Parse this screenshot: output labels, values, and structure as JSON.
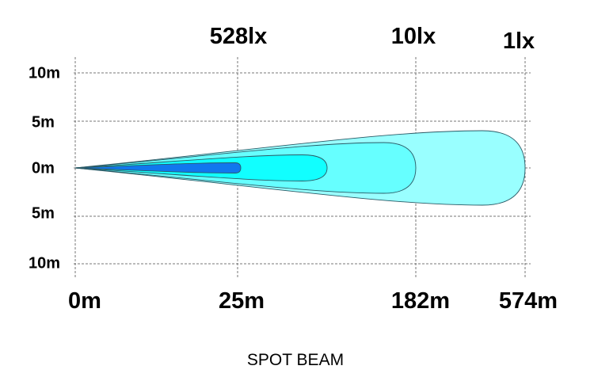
{
  "lux_labels": [
    "528lx",
    "10lx",
    "1lx"
  ],
  "lateral_labels": [
    "10m",
    "5m",
    "0m",
    "5m",
    "10m"
  ],
  "distance_labels": [
    "0m",
    "25m",
    "182m",
    "574m"
  ],
  "title": "SPOT BEAM",
  "colors": {
    "contour_1lx": "#99FFFF",
    "contour_10lx": "#66FFFF",
    "contour_inner": "#11FFFF",
    "contour_528lx": "#1177EE",
    "outline": "#2a5a66",
    "grid": "#777777"
  }
}
